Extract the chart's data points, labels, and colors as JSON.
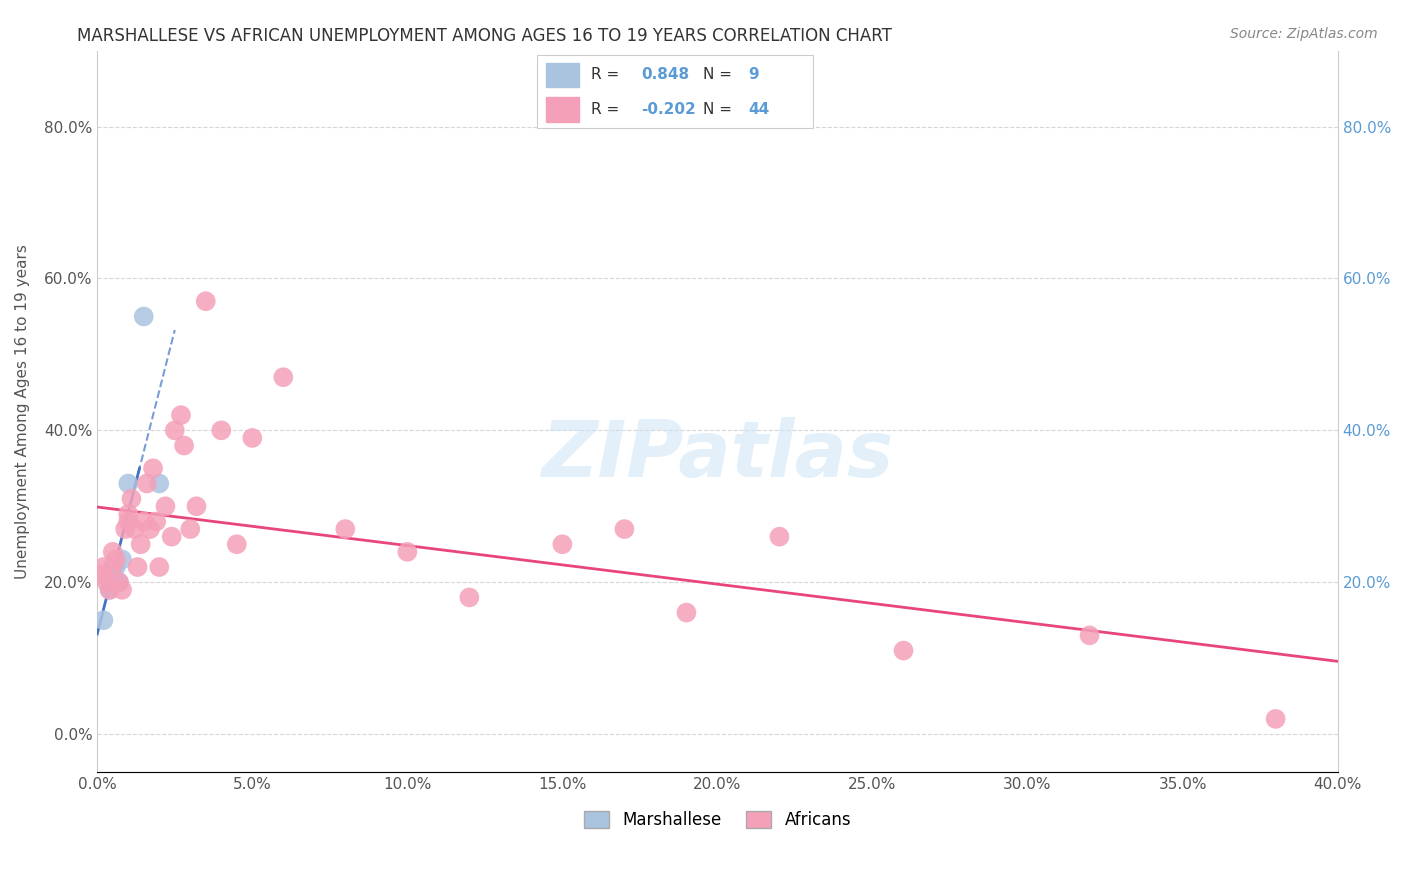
{
  "title": "MARSHALLESE VS AFRICAN UNEMPLOYMENT AMONG AGES 16 TO 19 YEARS CORRELATION CHART",
  "source": "Source: ZipAtlas.com",
  "ylabel": "Unemployment Among Ages 16 to 19 years",
  "xlim": [
    0.0,
    0.4
  ],
  "ylim": [
    -0.05,
    0.9
  ],
  "xticks": [
    0.0,
    0.05,
    0.1,
    0.15,
    0.2,
    0.25,
    0.3,
    0.35,
    0.4
  ],
  "yticks_left": [
    0.0,
    0.2,
    0.4,
    0.6,
    0.8
  ],
  "yticks_right": [
    0.2,
    0.4,
    0.6,
    0.8
  ],
  "marshallese_R": 0.848,
  "marshallese_N": 9,
  "african_R": -0.202,
  "african_N": 44,
  "marshallese_color": "#aac4e0",
  "marshallese_line_color": "#4472c4",
  "african_color": "#f4a0b8",
  "african_line_color": "#e8457a",
  "background_color": "#ffffff",
  "marshallese_x": [
    0.002,
    0.004,
    0.005,
    0.006,
    0.007,
    0.008,
    0.01,
    0.015,
    0.02
  ],
  "marshallese_y": [
    0.15,
    0.19,
    0.22,
    0.22,
    0.2,
    0.23,
    0.33,
    0.55,
    0.33
  ],
  "african_x": [
    0.001,
    0.002,
    0.003,
    0.004,
    0.005,
    0.005,
    0.006,
    0.007,
    0.008,
    0.009,
    0.01,
    0.01,
    0.011,
    0.012,
    0.013,
    0.014,
    0.015,
    0.016,
    0.017,
    0.018,
    0.019,
    0.02,
    0.022,
    0.024,
    0.025,
    0.027,
    0.028,
    0.03,
    0.032,
    0.035,
    0.04,
    0.045,
    0.05,
    0.06,
    0.08,
    0.1,
    0.12,
    0.15,
    0.17,
    0.19,
    0.22,
    0.26,
    0.32,
    0.38
  ],
  "african_y": [
    0.21,
    0.22,
    0.2,
    0.19,
    0.22,
    0.24,
    0.23,
    0.2,
    0.19,
    0.27,
    0.29,
    0.28,
    0.31,
    0.27,
    0.22,
    0.25,
    0.28,
    0.33,
    0.27,
    0.35,
    0.28,
    0.22,
    0.3,
    0.26,
    0.4,
    0.42,
    0.38,
    0.27,
    0.3,
    0.57,
    0.4,
    0.25,
    0.39,
    0.47,
    0.27,
    0.24,
    0.18,
    0.25,
    0.27,
    0.16,
    0.26,
    0.11,
    0.13,
    0.02
  ]
}
